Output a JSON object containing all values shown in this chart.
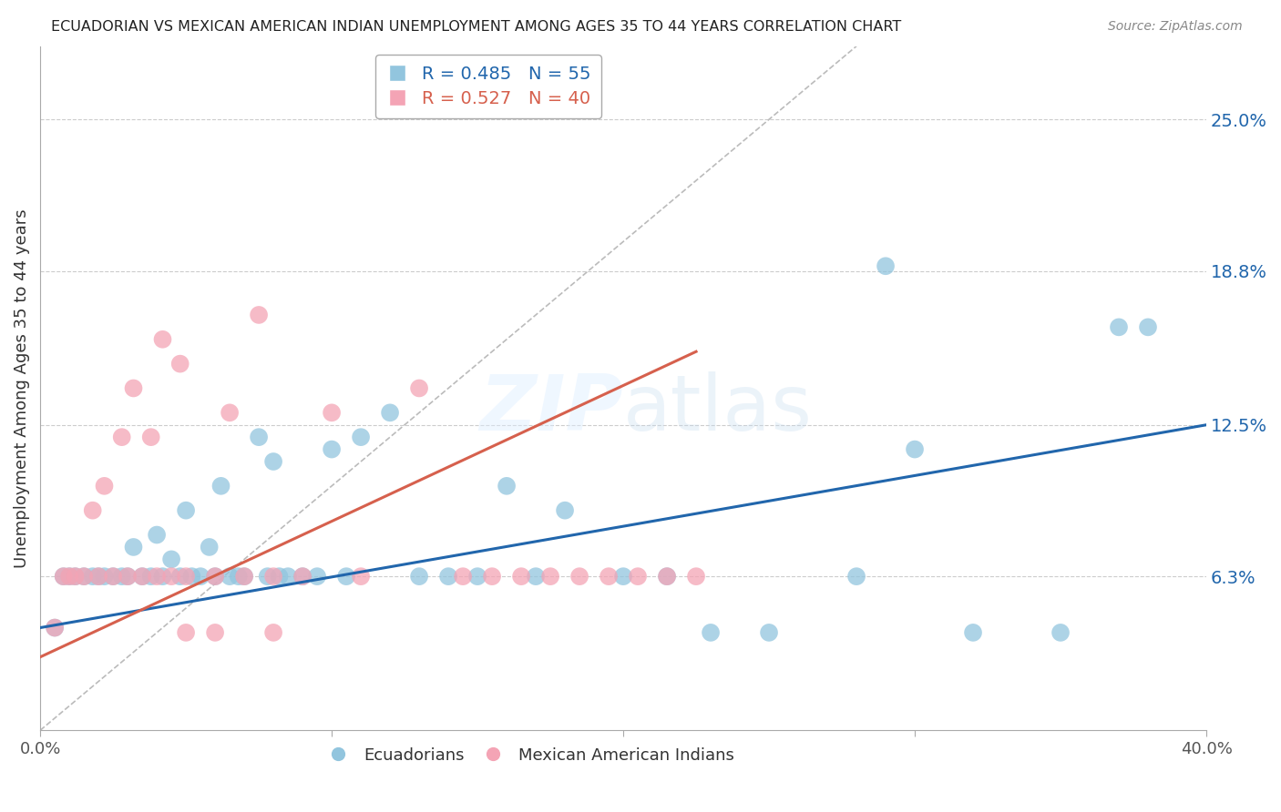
{
  "title": "ECUADORIAN VS MEXICAN AMERICAN INDIAN UNEMPLOYMENT AMONG AGES 35 TO 44 YEARS CORRELATION CHART",
  "source": "Source: ZipAtlas.com",
  "ylabel": "Unemployment Among Ages 35 to 44 years",
  "ytick_labels": [
    "25.0%",
    "18.8%",
    "12.5%",
    "6.3%"
  ],
  "ytick_values": [
    0.25,
    0.188,
    0.125,
    0.063
  ],
  "xlim": [
    0.0,
    0.4
  ],
  "ylim": [
    0.0,
    0.28
  ],
  "blue_color": "#92c5de",
  "pink_color": "#f4a4b5",
  "line_blue": "#2166ac",
  "line_pink": "#d6604d",
  "diagonal_color": "#bbbbbb",
  "background_color": "#ffffff",
  "grid_color": "#cccccc",
  "ecuadorian_x": [
    0.005,
    0.008,
    0.01,
    0.012,
    0.015,
    0.018,
    0.02,
    0.022,
    0.025,
    0.028,
    0.03,
    0.032,
    0.035,
    0.038,
    0.04,
    0.042,
    0.045,
    0.048,
    0.05,
    0.052,
    0.055,
    0.058,
    0.06,
    0.062,
    0.065,
    0.068,
    0.07,
    0.075,
    0.078,
    0.08,
    0.082,
    0.085,
    0.09,
    0.095,
    0.1,
    0.105,
    0.11,
    0.12,
    0.13,
    0.14,
    0.15,
    0.16,
    0.17,
    0.18,
    0.2,
    0.215,
    0.23,
    0.25,
    0.28,
    0.3,
    0.32,
    0.35,
    0.37,
    0.29,
    0.38
  ],
  "ecuadorian_y": [
    0.042,
    0.063,
    0.063,
    0.063,
    0.063,
    0.063,
    0.063,
    0.063,
    0.063,
    0.063,
    0.063,
    0.075,
    0.063,
    0.063,
    0.08,
    0.063,
    0.07,
    0.063,
    0.09,
    0.063,
    0.063,
    0.075,
    0.063,
    0.1,
    0.063,
    0.063,
    0.063,
    0.12,
    0.063,
    0.11,
    0.063,
    0.063,
    0.063,
    0.063,
    0.115,
    0.063,
    0.12,
    0.13,
    0.063,
    0.063,
    0.063,
    0.1,
    0.063,
    0.09,
    0.063,
    0.063,
    0.04,
    0.04,
    0.063,
    0.115,
    0.04,
    0.04,
    0.165,
    0.19,
    0.165
  ],
  "mexican_x": [
    0.005,
    0.008,
    0.01,
    0.012,
    0.015,
    0.018,
    0.02,
    0.022,
    0.025,
    0.028,
    0.03,
    0.032,
    0.035,
    0.038,
    0.04,
    0.042,
    0.045,
    0.048,
    0.05,
    0.06,
    0.065,
    0.07,
    0.075,
    0.08,
    0.09,
    0.1,
    0.11,
    0.13,
    0.145,
    0.155,
    0.165,
    0.175,
    0.185,
    0.195,
    0.205,
    0.215,
    0.225,
    0.05,
    0.06,
    0.08
  ],
  "mexican_y": [
    0.042,
    0.063,
    0.063,
    0.063,
    0.063,
    0.09,
    0.063,
    0.1,
    0.063,
    0.12,
    0.063,
    0.14,
    0.063,
    0.12,
    0.063,
    0.16,
    0.063,
    0.15,
    0.063,
    0.063,
    0.13,
    0.063,
    0.17,
    0.063,
    0.063,
    0.13,
    0.063,
    0.14,
    0.063,
    0.063,
    0.063,
    0.063,
    0.063,
    0.063,
    0.063,
    0.063,
    0.063,
    0.04,
    0.04,
    0.04
  ],
  "ecu_line_x0": 0.0,
  "ecu_line_y0": 0.042,
  "ecu_line_x1": 0.4,
  "ecu_line_y1": 0.125,
  "mex_line_x0": 0.0,
  "mex_line_y0": 0.03,
  "mex_line_x1": 0.225,
  "mex_line_y1": 0.155
}
